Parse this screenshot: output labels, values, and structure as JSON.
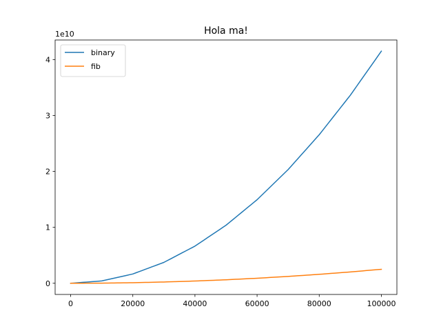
{
  "chart_data": {
    "type": "line",
    "title": "Hola ma!",
    "xlabel": "",
    "ylabel": "",
    "y_offset_text": "1e10",
    "xlim": [
      -5000,
      105000
    ],
    "ylim": [
      -0.2,
      4.35
    ],
    "x_ticks": [
      0,
      20000,
      40000,
      60000,
      80000,
      100000
    ],
    "x_tick_labels": [
      "0",
      "20000",
      "40000",
      "60000",
      "80000",
      "100000"
    ],
    "y_ticks": [
      0,
      1,
      2,
      3,
      4
    ],
    "y_tick_labels": [
      "0",
      "1",
      "2",
      "3",
      "4"
    ],
    "grid": false,
    "legend_position": "top-left",
    "x": [
      0,
      10000,
      20000,
      30000,
      40000,
      50000,
      60000,
      70000,
      80000,
      90000,
      100000
    ],
    "series": [
      {
        "name": "binary",
        "color": "#1f77b4",
        "values": [
          0,
          0.0415,
          0.166,
          0.3735,
          0.664,
          1.0375,
          1.494,
          2.0335,
          2.656,
          3.3615,
          4.15
        ]
      },
      {
        "name": "fib",
        "color": "#ff7f0e",
        "values": [
          0,
          0.0025,
          0.01,
          0.0225,
          0.04,
          0.0625,
          0.09,
          0.1225,
          0.16,
          0.2025,
          0.25
        ]
      }
    ]
  }
}
